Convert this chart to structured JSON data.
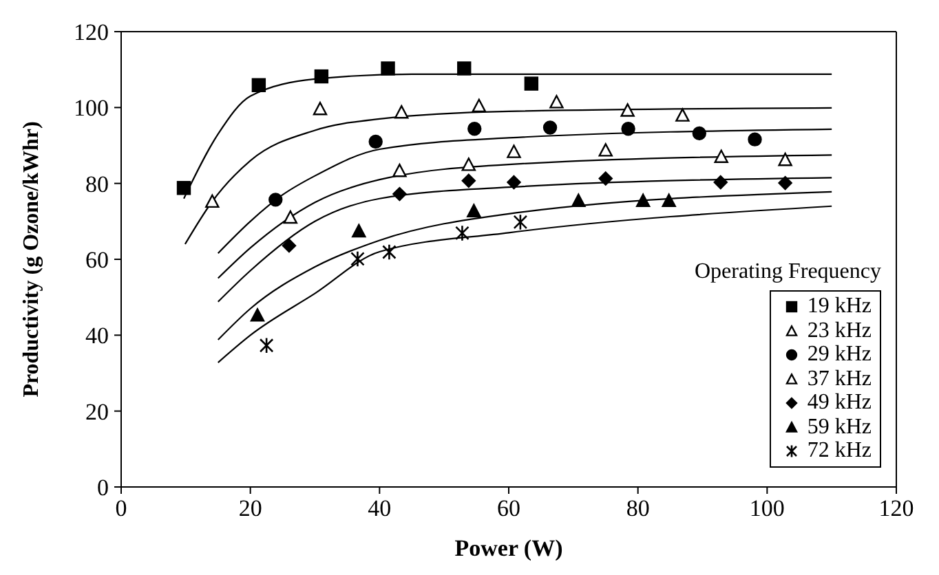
{
  "chart_data": {
    "type": "scatter",
    "xlabel": "Power (W)",
    "ylabel": "Productivity (g Ozone/kWhr)",
    "legend_title": "Operating Frequency",
    "xlim": [
      0,
      120
    ],
    "xticks": [
      0,
      20,
      40,
      60,
      80,
      100,
      120
    ],
    "ylim": [
      0,
      120
    ],
    "yticks": [
      0,
      20,
      40,
      60,
      80,
      100,
      120
    ],
    "legend": "bottom right",
    "series": [
      {
        "name": "19 kHz",
        "type": "scatter",
        "marker": "square",
        "color": "#000000",
        "x": [
          9.7,
          21.3,
          31.0,
          41.3,
          53.1,
          63.5
        ],
        "values": [
          78.8,
          105.9,
          108.2,
          110.3,
          110.3,
          106.3
        ]
      },
      {
        "name": "23 kHz",
        "type": "scatter",
        "marker": "triangle",
        "color": "#ffffff",
        "x": [
          14.1,
          30.8,
          43.4,
          55.4,
          67.4,
          78.4,
          86.9
        ],
        "values": [
          75.1,
          99.5,
          98.6,
          100.3,
          101.3,
          99.1,
          97.8
        ]
      },
      {
        "name": "29 kHz",
        "type": "scatter",
        "marker": "circle",
        "color": "#000000",
        "x": [
          23.9,
          39.4,
          54.7,
          66.4,
          78.5,
          89.5,
          98.1
        ],
        "values": [
          75.7,
          91.0,
          94.4,
          94.7,
          94.4,
          93.2,
          91.6
        ]
      },
      {
        "name": "37 kHz",
        "type": "scatter",
        "marker": "triangle",
        "color": "#ffffff",
        "x": [
          26.2,
          43.1,
          53.8,
          60.8,
          75.0,
          92.9,
          102.8
        ],
        "values": [
          70.9,
          83.2,
          84.8,
          88.2,
          88.6,
          86.9,
          86.1
        ]
      },
      {
        "name": "49 kHz",
        "type": "scatter",
        "marker": "diamond",
        "color": "#000000",
        "x": [
          26.0,
          43.1,
          53.8,
          60.8,
          75.0,
          92.8,
          102.8
        ],
        "values": [
          63.6,
          77.2,
          80.7,
          80.3,
          81.3,
          80.3,
          80.1
        ]
      },
      {
        "name": "59 kHz",
        "type": "scatter",
        "marker": "triangle",
        "color": "#000000",
        "x": [
          21.1,
          36.8,
          54.6,
          70.8,
          80.8,
          84.8
        ],
        "values": [
          45.1,
          67.3,
          72.6,
          75.3,
          75.3,
          75.3
        ]
      },
      {
        "name": "72 kHz",
        "type": "scatter",
        "marker": "cross",
        "color": "#000000",
        "x": [
          22.5,
          36.6,
          41.5,
          52.8,
          61.8
        ],
        "values": [
          37.3,
          60.1,
          61.9,
          66.9,
          69.8
        ]
      },
      {
        "type": "line",
        "color": "#000000",
        "x": [
          9.7,
          15,
          20,
          30,
          45,
          110
        ],
        "values": [
          76,
          93,
          103,
          107.5,
          108.8,
          108.8
        ]
      },
      {
        "type": "line",
        "color": "#000000",
        "x": [
          9.9,
          14,
          20,
          30,
          40,
          60,
          110
        ],
        "values": [
          64,
          75,
          86,
          94,
          97,
          99,
          99.9
        ]
      },
      {
        "type": "line",
        "color": "#000000",
        "x": [
          15,
          20,
          25,
          30,
          40,
          60,
          110
        ],
        "values": [
          61.6,
          70,
          77,
          82,
          89,
          92,
          94.3
        ]
      },
      {
        "type": "line",
        "color": "#000000",
        "x": [
          15,
          20,
          30,
          40,
          60,
          110
        ],
        "values": [
          55,
          63,
          75,
          81,
          85,
          87.5
        ]
      },
      {
        "type": "line",
        "color": "#000000",
        "x": [
          15,
          20,
          30,
          40,
          60,
          110
        ],
        "values": [
          48.8,
          57,
          70,
          76,
          79,
          81.5
        ]
      },
      {
        "type": "line",
        "color": "#000000",
        "x": [
          15,
          20,
          30,
          40,
          60,
          110
        ],
        "values": [
          38.8,
          47,
          58,
          65,
          72,
          77.8
        ]
      },
      {
        "type": "line",
        "color": "#000000",
        "x": [
          15,
          20,
          30,
          40,
          60,
          110
        ],
        "values": [
          32.8,
          40,
          51,
          62,
          67,
          74
        ]
      }
    ]
  }
}
